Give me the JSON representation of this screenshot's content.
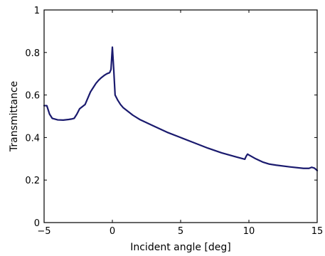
{
  "chart_data": {
    "type": "line",
    "title": "",
    "xlabel": "Incident angle [deg]",
    "ylabel": "Transmittance",
    "xlim": [
      -5,
      15
    ],
    "ylim": [
      0,
      1
    ],
    "grid": false,
    "x_ticks": [
      -5,
      0,
      5,
      10,
      15
    ],
    "y_ticks": [
      0,
      0.2,
      0.4,
      0.6,
      0.8,
      1
    ],
    "x_tick_labels": [
      "−5",
      "0",
      "5",
      "10",
      "15"
    ],
    "y_tick_labels": [
      "0",
      "0.2",
      "0.4",
      "0.6",
      "0.8",
      "1"
    ],
    "line_color": "#1a1a6e",
    "series": [
      {
        "x": [
          -5,
          -4.8,
          -4.6,
          -4.4,
          -4,
          -3.6,
          -3.2,
          -3,
          -2.8,
          -2.6,
          -2.4,
          -2.2,
          -2,
          -1.8,
          -1.6,
          -1.4,
          -1.2,
          -1,
          -0.8,
          -0.6,
          -0.4,
          -0.2,
          -0.1,
          0,
          0.1,
          0.2,
          0.4,
          0.6,
          0.8,
          1,
          1.5,
          2,
          3,
          4,
          5,
          6,
          7,
          8,
          9,
          9.7,
          9.8,
          9.9,
          10,
          10.5,
          11,
          11.5,
          12,
          13,
          14,
          14.4,
          14.6,
          14.8,
          15
        ],
        "y": [
          0.55,
          0.55,
          0.51,
          0.49,
          0.483,
          0.482,
          0.485,
          0.487,
          0.49,
          0.51,
          0.535,
          0.545,
          0.555,
          0.585,
          0.615,
          0.635,
          0.655,
          0.67,
          0.682,
          0.692,
          0.7,
          0.705,
          0.72,
          0.825,
          0.72,
          0.6,
          0.575,
          0.555,
          0.54,
          0.53,
          0.505,
          0.485,
          0.455,
          0.425,
          0.4,
          0.375,
          0.35,
          0.328,
          0.31,
          0.298,
          0.312,
          0.322,
          0.318,
          0.3,
          0.285,
          0.275,
          0.27,
          0.262,
          0.255,
          0.255,
          0.26,
          0.256,
          0.245
        ]
      }
    ]
  }
}
